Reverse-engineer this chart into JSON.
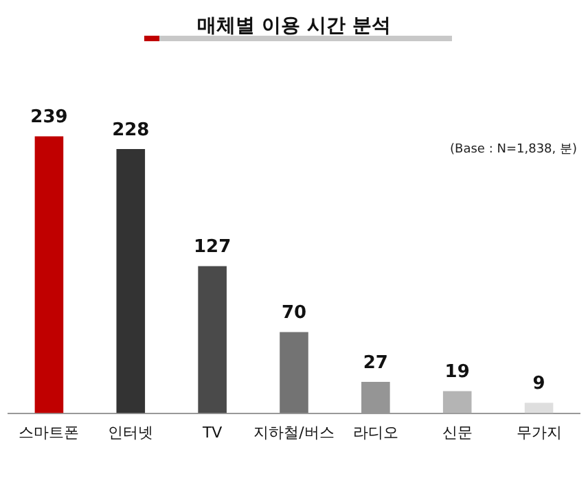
{
  "chart_data": {
    "type": "bar",
    "title": "매체별 이용 시간 분석",
    "annotations": [
      "(Base : N=1,838, 분)"
    ],
    "categories": [
      "스마트폰",
      "인터넷",
      "TV",
      "지하철/버스",
      "라디오",
      "신문",
      "무가지"
    ],
    "values": [
      239,
      228,
      127,
      70,
      27,
      19,
      9
    ],
    "colors": [
      "#c00000",
      "#333333",
      "#4a4a4a",
      "#737373",
      "#959595",
      "#b4b4b4",
      "#dedede"
    ],
    "data_labels": true,
    "grid": false,
    "legend": false
  }
}
